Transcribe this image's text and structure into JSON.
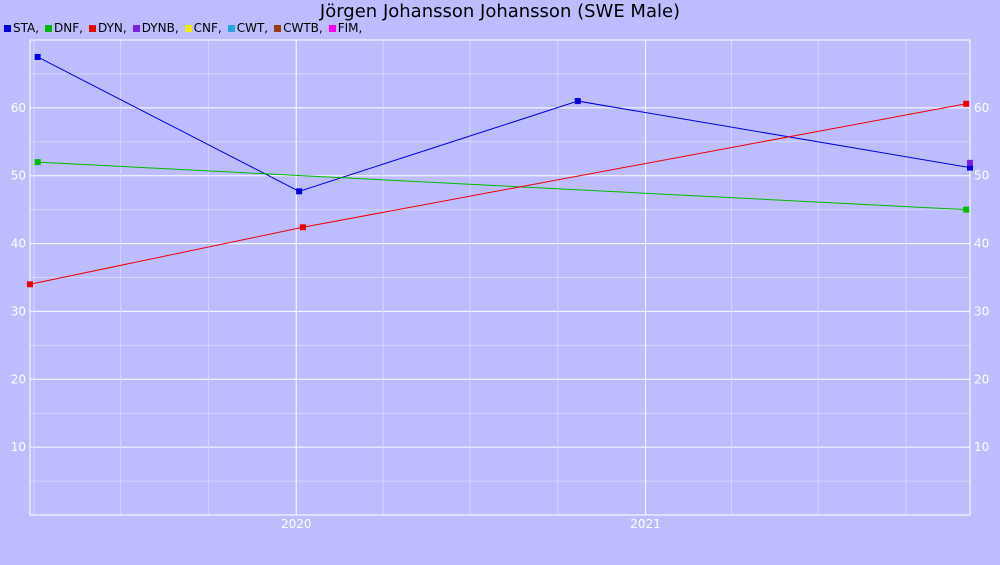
{
  "chart_data": {
    "type": "line",
    "title": "Jörgen Johansson Johansson (SWE Male)",
    "xlabel": "",
    "ylabel": "",
    "x_range": [
      "2019-03-28",
      "2021-12-07"
    ],
    "ylim": [
      0,
      70
    ],
    "y_ticks": [
      10,
      20,
      30,
      40,
      50,
      60
    ],
    "x_ticks": [
      {
        "label": "2020",
        "date": "2020-01-01"
      },
      {
        "label": "2021",
        "date": "2021-01-01"
      }
    ],
    "grid": true,
    "legend_position": "top-left",
    "legend": [
      {
        "label": "STA,",
        "color": "#0000dd"
      },
      {
        "label": "DNF,",
        "color": "#00bb00"
      },
      {
        "label": "DYN,",
        "color": "#ee0000"
      },
      {
        "label": "DYNB,",
        "color": "#7a1fdd"
      },
      {
        "label": "CNF,",
        "color": "#eeee00"
      },
      {
        "label": "CWT,",
        "color": "#22aadd"
      },
      {
        "label": "CWTB,",
        "color": "#9a3a10"
      },
      {
        "label": "FIM,",
        "color": "#ff00ff"
      }
    ],
    "series": [
      {
        "name": "STA",
        "color": "#0000dd",
        "points": [
          {
            "x": "2019-04-05",
            "y": 67.5
          },
          {
            "x": "2020-01-04",
            "y": 47.7
          },
          {
            "x": "2020-10-22",
            "y": 61.0
          },
          {
            "x": "2021-12-07",
            "y": 51.2
          }
        ]
      },
      {
        "name": "DNF",
        "color": "#00bb00",
        "points": [
          {
            "x": "2019-04-05",
            "y": 52.0
          },
          {
            "x": "2021-12-03",
            "y": 45.0
          }
        ]
      },
      {
        "name": "DYN",
        "color": "#ee0000",
        "points": [
          {
            "x": "2019-03-28",
            "y": 34.0
          },
          {
            "x": "2020-01-08",
            "y": 42.4
          },
          {
            "x": "2021-12-03",
            "y": 60.6
          }
        ]
      },
      {
        "name": "DYNB",
        "color": "#7a1fdd",
        "points": [
          {
            "x": "2021-12-07",
            "y": 51.9
          }
        ]
      }
    ]
  }
}
